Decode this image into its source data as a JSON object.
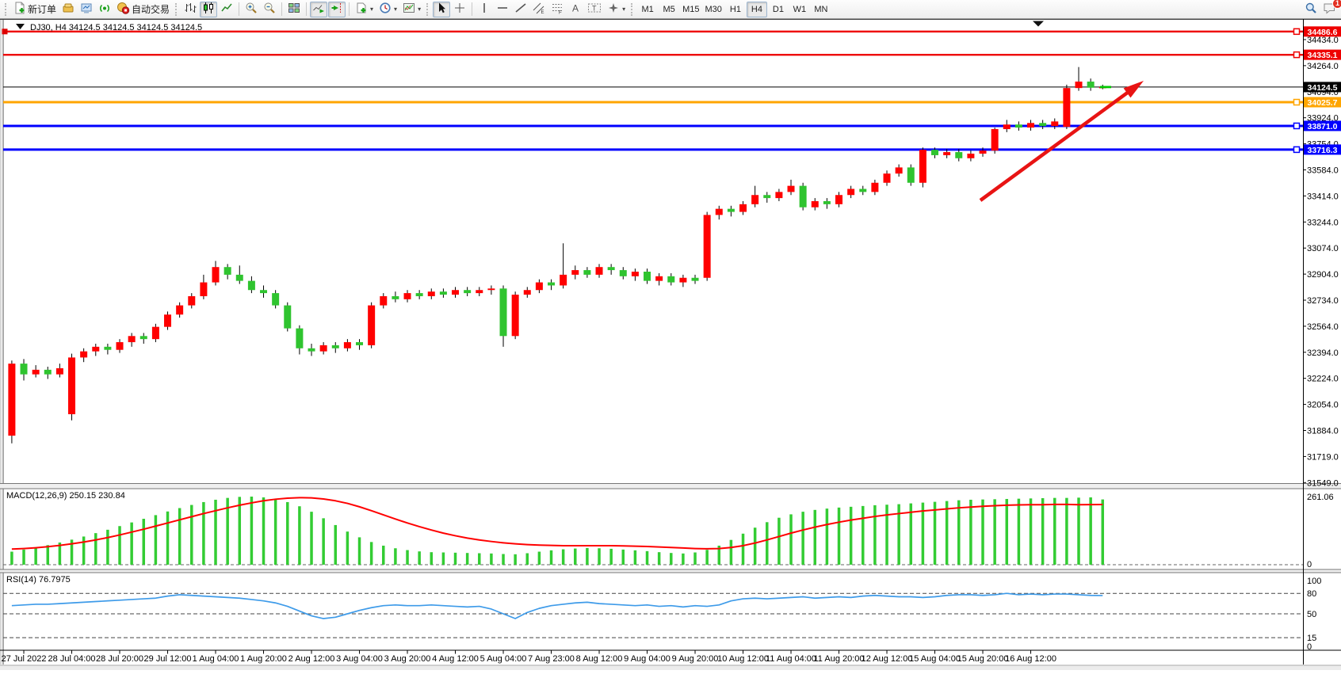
{
  "toolbar": {
    "new_order_label": "新订单",
    "auto_trading_label": "自动交易",
    "timeframes": [
      "M1",
      "M5",
      "M15",
      "M30",
      "H1",
      "H4",
      "D1",
      "W1",
      "MN"
    ],
    "active_timeframe": "H4",
    "chat_badge": "1"
  },
  "chart": {
    "title": "DJ30, H4  34124.5 34124.5 34124.5 34124.5",
    "y_ticks": [
      "34434.0",
      "34264.0",
      "34094.0",
      "33924.0",
      "33754.0",
      "33584.0",
      "33414.0",
      "33244.0",
      "33074.0",
      "32904.0",
      "32734.0",
      "32564.0",
      "32394.0",
      "32224.0",
      "32054.0",
      "31884.0",
      "31719.0",
      "31549.0"
    ],
    "time_labels": [
      "27 Jul 2022",
      "28 Jul 04:00",
      "28 Jul 20:00",
      "29 Jul 12:00",
      "1 Aug 04:00",
      "1 Aug 20:00",
      "2 Aug 12:00",
      "3 Aug 04:00",
      "3 Aug 20:00",
      "4 Aug 12:00",
      "5 Aug 04:00",
      "7 Aug 23:00",
      "8 Aug 12:00",
      "9 Aug 04:00",
      "9 Aug 20:00",
      "10 Aug 12:00",
      "11 Aug 04:00",
      "11 Aug 20:00",
      "12 Aug 12:00",
      "15 Aug 04:00",
      "15 Aug 20:00",
      "16 Aug 12:00"
    ],
    "price_lines": [
      {
        "price": 34486.6,
        "label": "34486.6",
        "color": "#ee0000",
        "tag_fg": "#ffffff",
        "width": 2.4
      },
      {
        "price": 34335.1,
        "label": "34335.1",
        "color": "#ee0000",
        "tag_fg": "#ffffff",
        "width": 2.4
      },
      {
        "price": 34025.7,
        "label": "34025.7",
        "color": "#ffa500",
        "tag_fg": "#ffffff",
        "width": 3
      },
      {
        "price": 33871.0,
        "label": "33871.0",
        "color": "#0000ff",
        "tag_fg": "#ffffff",
        "width": 3
      },
      {
        "price": 33716.3,
        "label": "33716.3",
        "color": "#0000ff",
        "tag_fg": "#ffffff",
        "width": 3
      }
    ],
    "current_price": {
      "price": 34124.5,
      "label": "34124.5",
      "tag_bg": "#000000",
      "tag_fg": "#ffffff"
    },
    "colors": {
      "bull_candle": "#ff0000",
      "bear_candle": "#2fc42f",
      "macd_histogram": "#33cc33",
      "macd_signal": "#ff0000",
      "rsi_line": "#3e9be9",
      "trend_arrow": "#e81414",
      "price_dash": "#00c800"
    }
  },
  "chart_data": {
    "type": "candlestick",
    "symbol": "DJ30",
    "period": "H4",
    "candles_ohlc": [
      [
        31850,
        32340,
        31800,
        32320
      ],
      [
        32320,
        32350,
        32210,
        32250
      ],
      [
        32250,
        32310,
        32230,
        32280
      ],
      [
        32280,
        32300,
        32220,
        32250
      ],
      [
        32250,
        32320,
        32230,
        32290
      ],
      [
        31990,
        32385,
        31950,
        32360
      ],
      [
        32360,
        32420,
        32330,
        32400
      ],
      [
        32400,
        32450,
        32370,
        32430
      ],
      [
        32430,
        32450,
        32380,
        32410
      ],
      [
        32410,
        32480,
        32390,
        32460
      ],
      [
        32460,
        32520,
        32430,
        32500
      ],
      [
        32500,
        32520,
        32450,
        32480
      ],
      [
        32480,
        32580,
        32460,
        32560
      ],
      [
        32560,
        32660,
        32540,
        32640
      ],
      [
        32640,
        32720,
        32620,
        32700
      ],
      [
        32700,
        32780,
        32680,
        32760
      ],
      [
        32760,
        32900,
        32740,
        32850
      ],
      [
        32850,
        32990,
        32830,
        32950
      ],
      [
        32950,
        32970,
        32870,
        32900
      ],
      [
        32900,
        32960,
        32840,
        32860
      ],
      [
        32860,
        32890,
        32780,
        32800
      ],
      [
        32800,
        32830,
        32750,
        32780
      ],
      [
        32780,
        32800,
        32680,
        32700
      ],
      [
        32700,
        32720,
        32530,
        32550
      ],
      [
        32550,
        32570,
        32380,
        32420
      ],
      [
        32420,
        32450,
        32370,
        32400
      ],
      [
        32400,
        32460,
        32380,
        32440
      ],
      [
        32440,
        32460,
        32390,
        32420
      ],
      [
        32420,
        32480,
        32400,
        32460
      ],
      [
        32460,
        32480,
        32410,
        32440
      ],
      [
        32440,
        32720,
        32420,
        32700
      ],
      [
        32700,
        32780,
        32680,
        32760
      ],
      [
        32760,
        32790,
        32720,
        32740
      ],
      [
        32740,
        32800,
        32720,
        32780
      ],
      [
        32780,
        32800,
        32740,
        32760
      ],
      [
        32760,
        32810,
        32740,
        32790
      ],
      [
        32790,
        32810,
        32750,
        32770
      ],
      [
        32770,
        32820,
        32750,
        32800
      ],
      [
        32800,
        32820,
        32760,
        32780
      ],
      [
        32780,
        32820,
        32760,
        32800
      ],
      [
        32800,
        32830,
        32770,
        32810
      ],
      [
        32810,
        32830,
        32430,
        32500
      ],
      [
        32500,
        32790,
        32480,
        32770
      ],
      [
        32770,
        32820,
        32750,
        32800
      ],
      [
        32800,
        32870,
        32780,
        32850
      ],
      [
        32850,
        32870,
        32800,
        32830
      ],
      [
        32830,
        33105,
        32810,
        32900
      ],
      [
        32900,
        32960,
        32870,
        32930
      ],
      [
        32930,
        32950,
        32880,
        32900
      ],
      [
        32900,
        32970,
        32880,
        32950
      ],
      [
        32950,
        32970,
        32900,
        32930
      ],
      [
        32930,
        32950,
        32870,
        32890
      ],
      [
        32890,
        32940,
        32860,
        32920
      ],
      [
        32920,
        32940,
        32840,
        32860
      ],
      [
        32860,
        32910,
        32830,
        32890
      ],
      [
        32890,
        32910,
        32830,
        32850
      ],
      [
        32850,
        32900,
        32820,
        32880
      ],
      [
        32880,
        32900,
        32840,
        32860
      ],
      [
        32880,
        33310,
        32860,
        33290
      ],
      [
        33290,
        33350,
        33260,
        33330
      ],
      [
        33330,
        33350,
        33280,
        33310
      ],
      [
        33310,
        33380,
        33290,
        33360
      ],
      [
        33360,
        33480,
        33340,
        33420
      ],
      [
        33420,
        33440,
        33370,
        33400
      ],
      [
        33400,
        33460,
        33380,
        33440
      ],
      [
        33440,
        33520,
        33420,
        33480
      ],
      [
        33480,
        33500,
        33320,
        33340
      ],
      [
        33340,
        33400,
        33320,
        33380
      ],
      [
        33380,
        33400,
        33330,
        33360
      ],
      [
        33360,
        33440,
        33340,
        33420
      ],
      [
        33420,
        33480,
        33400,
        33460
      ],
      [
        33460,
        33480,
        33420,
        33440
      ],
      [
        33440,
        33520,
        33420,
        33500
      ],
      [
        33500,
        33580,
        33480,
        33560
      ],
      [
        33560,
        33620,
        33540,
        33600
      ],
      [
        33600,
        33620,
        33480,
        33500
      ],
      [
        33500,
        33730,
        33470,
        33715
      ],
      [
        33715,
        33730,
        33660,
        33680
      ],
      [
        33680,
        33720,
        33660,
        33700
      ],
      [
        33700,
        33720,
        33640,
        33660
      ],
      [
        33660,
        33710,
        33640,
        33690
      ],
      [
        33690,
        33730,
        33670,
        33710
      ],
      [
        33710,
        33860,
        33690,
        33850
      ],
      [
        33850,
        33910,
        33830,
        33880
      ],
      [
        33880,
        33900,
        33840,
        33860
      ],
      [
        33860,
        33910,
        33840,
        33890
      ],
      [
        33890,
        33910,
        33850,
        33870
      ],
      [
        33870,
        33920,
        33850,
        33900
      ],
      [
        33865,
        34140,
        33850,
        34118
      ],
      [
        34118,
        34255,
        34100,
        34160
      ],
      [
        34160,
        34180,
        34100,
        34120
      ],
      [
        34120,
        34140,
        34110,
        34124.5
      ]
    ],
    "indicators": {
      "macd": {
        "label": "MACD(12,26,9) 250.15 230.84",
        "scale_max": "261.06",
        "scale_min": "0",
        "histogram": [
          50,
          58,
          66,
          75,
          85,
          96,
          108,
          121,
          134,
          148,
          162,
          176,
          190,
          204,
          217,
          229,
          240,
          249,
          256,
          260,
          261,
          258,
          251,
          240,
          224,
          203,
          178,
          152,
          127,
          105,
          87,
          73,
          63,
          56,
          51,
          48,
          47,
          46,
          45,
          44,
          43,
          41,
          40,
          44,
          50,
          55,
          59,
          62,
          64,
          63,
          61,
          58,
          55,
          52,
          48,
          45,
          43,
          47,
          57,
          73,
          95,
          119,
          142,
          163,
          180,
          193,
          203,
          210,
          215,
          219,
          222,
          225,
          228,
          230,
          232,
          235,
          238,
          241,
          244,
          247,
          249,
          250,
          251,
          252,
          253,
          254,
          255,
          256,
          256,
          257,
          258,
          250.15
        ],
        "signal": [
          60,
          62,
          65,
          69,
          74,
          80,
          87,
          95,
          104,
          114,
          125,
          136,
          148,
          160,
          172,
          184,
          196,
          207,
          218,
          228,
          237,
          245,
          251,
          255,
          257,
          256,
          252,
          245,
          235,
          222,
          207,
          191,
          175,
          160,
          146,
          133,
          121,
          111,
          102,
          95,
          89,
          84,
          80,
          77,
          75,
          74,
          73,
          73,
          73,
          73,
          73,
          72,
          71,
          70,
          68,
          66,
          64,
          62,
          61,
          62,
          66,
          73,
          83,
          95,
          108,
          121,
          133,
          144,
          154,
          163,
          171,
          178,
          185,
          191,
          196,
          201,
          206,
          210,
          214,
          218,
          221,
          224,
          226,
          228,
          229,
          230,
          230,
          231,
          231,
          230,
          230.5,
          230.84
        ]
      },
      "rsi": {
        "label": "RSI(14) 76.7975",
        "levels": [
          "100",
          "80",
          "50",
          "15",
          "0"
        ],
        "level_values": [
          100,
          80,
          50,
          15,
          0
        ],
        "values": [
          62,
          63,
          64,
          64,
          65,
          66,
          67,
          68,
          69,
          70,
          71,
          72,
          73,
          76,
          78,
          77,
          76,
          75,
          74,
          73,
          71,
          69,
          66,
          61,
          54,
          47,
          43,
          45,
          50,
          55,
          59,
          62,
          63,
          62,
          62,
          63,
          62,
          61,
          60,
          61,
          57,
          50,
          43,
          52,
          58,
          62,
          64,
          66,
          67,
          65,
          64,
          63,
          62,
          63,
          61,
          62,
          60,
          62,
          61,
          63,
          69,
          72,
          73,
          72,
          73,
          74,
          75,
          73,
          74,
          75,
          74,
          76,
          77,
          76,
          75,
          75,
          74,
          75,
          77,
          78,
          78,
          77,
          78,
          80,
          78,
          79,
          78,
          79,
          79,
          78,
          77,
          76.7975
        ]
      }
    },
    "annotations": {
      "trend_arrow": {
        "from": [
          1237,
          253
        ],
        "to": [
          1443,
          102
        ]
      }
    }
  }
}
